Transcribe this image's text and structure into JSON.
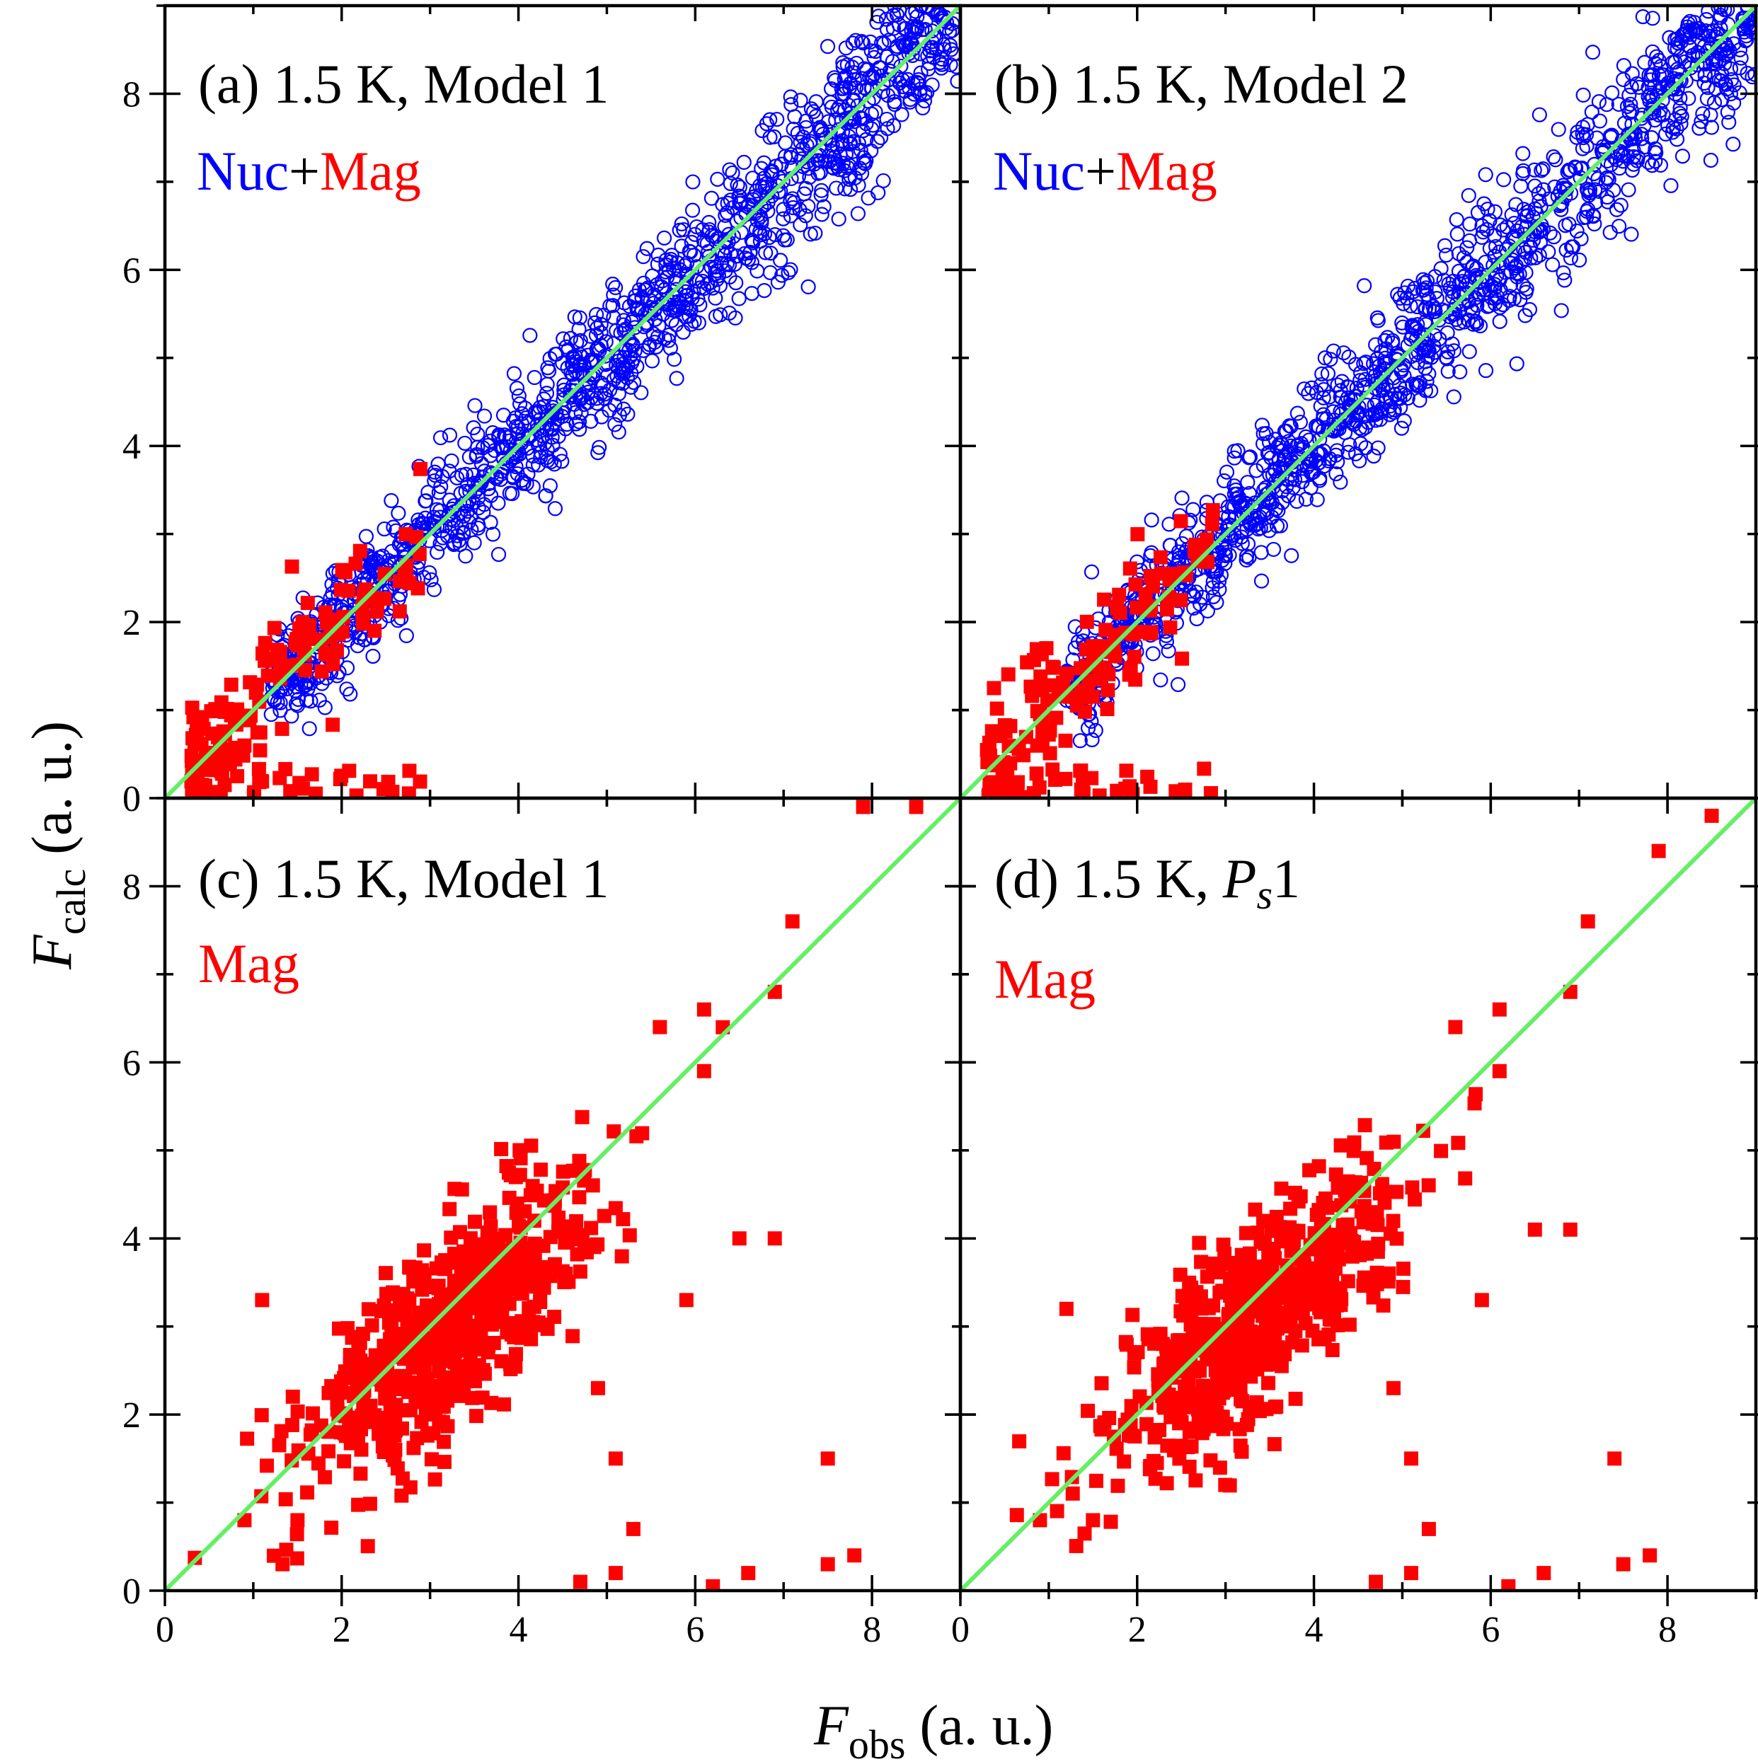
{
  "figure": {
    "x_title": {
      "main": "F",
      "sub": "obs",
      "units": " (a. u.)"
    },
    "y_title": {
      "main": "F",
      "sub": "calc",
      "units": " (a. u.)"
    },
    "colors": {
      "nuc": "#0000ff",
      "mag": "#ff0000",
      "line": "#66ee66",
      "axis": "#000000"
    }
  },
  "chart_data": [
    {
      "id": "a",
      "type": "scatter",
      "title": "(a) 1.5 K, Model 1",
      "legend": {
        "nuc_label": "Nuc",
        "plus": "+",
        "mag_label": "Mag"
      },
      "xlim": [
        0,
        9
      ],
      "ylim": [
        0,
        9
      ],
      "xticks": [],
      "yticks": [
        "0",
        "2",
        "4",
        "6",
        "8"
      ],
      "reference_line": "y = x",
      "series": [
        {
          "name": "Nuc",
          "marker": "open-circle",
          "color": "#0000ff",
          "count": 1300,
          "range": [
            1.2,
            9
          ],
          "scatter_sd": 0.45
        },
        {
          "name": "Mag",
          "marker": "filled-square",
          "color": "#ff0000",
          "count": 170,
          "range": [
            0.3,
            2.9
          ],
          "scatter_sd": 0.35
        }
      ]
    },
    {
      "id": "b",
      "type": "scatter",
      "title": "(b) 1.5 K, Model 2",
      "legend": {
        "nuc_label": "Nuc",
        "plus": "+",
        "mag_label": "Mag"
      },
      "xlim": [
        0,
        9
      ],
      "ylim": [
        0,
        9
      ],
      "xticks": [],
      "yticks": [],
      "reference_line": "y = x",
      "series": [
        {
          "name": "Nuc",
          "marker": "open-circle",
          "color": "#0000ff",
          "count": 1300,
          "range": [
            1.2,
            9
          ],
          "scatter_sd": 0.45
        },
        {
          "name": "Mag",
          "marker": "filled-square",
          "color": "#ff0000",
          "count": 170,
          "range": [
            0.3,
            2.9
          ],
          "scatter_sd": 0.35
        }
      ]
    },
    {
      "id": "c",
      "type": "scatter",
      "title": "(c) 1.5 K, Model 1",
      "legend": {
        "mag_label": "Mag"
      },
      "xlim": [
        0,
        9
      ],
      "ylim": [
        0,
        9
      ],
      "xticks": [
        "0",
        "2",
        "4",
        "6",
        "8"
      ],
      "yticks": [
        "0",
        "2",
        "4",
        "6",
        "8"
      ],
      "reference_line": "y = x",
      "series": [
        {
          "name": "Mag",
          "marker": "filled-square",
          "color": "#ff0000",
          "count": 600,
          "center": [
            3.2,
            2.9
          ],
          "extras": [
            [
              7.9,
              8.9
            ],
            [
              8.5,
              8.9
            ],
            [
              7.1,
              7.6
            ],
            [
              6.9,
              6.8
            ],
            [
              1.1,
              3.3
            ],
            [
              7.5,
              1.5
            ],
            [
              6.5,
              4.0
            ],
            [
              6.9,
              4.0
            ],
            [
              5.9,
              3.3
            ],
            [
              0.9,
              0.8
            ],
            [
              1.5,
              0.8
            ],
            [
              4.7,
              0.1
            ],
            [
              6.2,
              0.05
            ],
            [
              6.6,
              0.2
            ],
            [
              7.5,
              0.3
            ],
            [
              7.8,
              0.4
            ],
            [
              5.3,
              0.7
            ],
            [
              5.1,
              0.2
            ],
            [
              5.1,
              1.5
            ],
            [
              4.9,
              2.3
            ],
            [
              6.1,
              6.6
            ],
            [
              5.6,
              6.4
            ],
            [
              6.1,
              5.9
            ]
          ]
        }
      ]
    },
    {
      "id": "d",
      "type": "scatter",
      "title_main": "(d) 1.5 K, ",
      "title_var": "P",
      "title_sub": "s",
      "title_tail": "1",
      "legend": {
        "mag_label": "Mag"
      },
      "xlim": [
        0,
        9
      ],
      "ylim": [
        0,
        9
      ],
      "xticks": [
        "0",
        "2",
        "4",
        "6",
        "8"
      ],
      "yticks": [],
      "reference_line": "y = x",
      "series": [
        {
          "name": "Mag",
          "marker": "filled-square",
          "color": "#ff0000",
          "count": 600,
          "center": [
            3.3,
            3.1
          ],
          "extras": [
            [
              7.9,
              8.4
            ],
            [
              8.5,
              8.8
            ],
            [
              7.1,
              7.6
            ],
            [
              6.9,
              6.8
            ],
            [
              1.2,
              3.2
            ],
            [
              7.4,
              1.5
            ],
            [
              6.5,
              4.1
            ],
            [
              6.9,
              4.1
            ],
            [
              5.9,
              3.3
            ],
            [
              0.9,
              0.8
            ],
            [
              1.5,
              0.8
            ],
            [
              4.7,
              0.1
            ],
            [
              6.2,
              0.05
            ],
            [
              6.6,
              0.2
            ],
            [
              7.5,
              0.3
            ],
            [
              7.8,
              0.4
            ],
            [
              5.3,
              0.7
            ],
            [
              5.1,
              0.2
            ],
            [
              5.1,
              1.5
            ],
            [
              4.9,
              2.3
            ],
            [
              6.1,
              6.6
            ],
            [
              5.6,
              6.4
            ],
            [
              6.1,
              5.9
            ]
          ]
        }
      ]
    }
  ]
}
